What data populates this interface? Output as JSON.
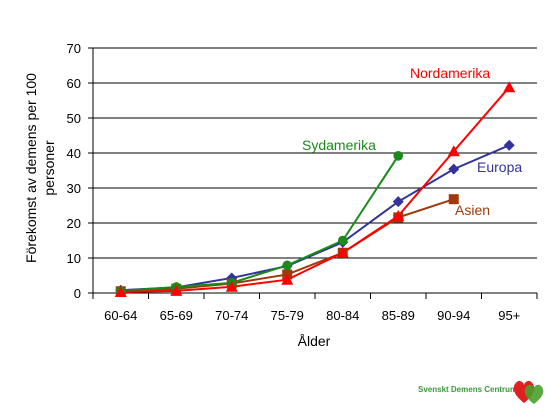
{
  "chart_data": {
    "type": "line",
    "xlabel": "Ålder",
    "ylabel_line1": "Förekomst av demens per 100",
    "ylabel_line2": "personer",
    "categories": [
      "60-64",
      "65-69",
      "70-74",
      "75-79",
      "80-84",
      "85-89",
      "90-94",
      "95+"
    ],
    "ylim": [
      0,
      70
    ],
    "yticks": [
      0,
      10,
      20,
      30,
      40,
      50,
      60,
      70
    ],
    "grid": true,
    "series": [
      {
        "name": "Europa",
        "color": "#333399",
        "marker": "diamond",
        "values": [
          0.8,
          1.6,
          4.3,
          7.7,
          14.5,
          26.1,
          35.4,
          42.2
        ]
      },
      {
        "name": "Asien",
        "color": "#a0380a",
        "marker": "square",
        "values": [
          0.5,
          1.2,
          2.7,
          5.3,
          11.5,
          21.6,
          26.8,
          null
        ]
      },
      {
        "name": "Sydamerika",
        "color": "#1a8a1a",
        "marker": "circle",
        "values": [
          0.6,
          1.7,
          2.9,
          7.9,
          15.0,
          39.2,
          null,
          null
        ]
      },
      {
        "name": "Nordamerika",
        "color": "#ff0000",
        "marker": "triangle",
        "values": [
          0.3,
          0.6,
          1.8,
          3.8,
          11.5,
          22.0,
          40.5,
          58.8
        ]
      }
    ]
  },
  "logo": {
    "text": "Svenskt Demens Centrum",
    "colors": [
      "#e02020",
      "#4aa02a"
    ]
  }
}
